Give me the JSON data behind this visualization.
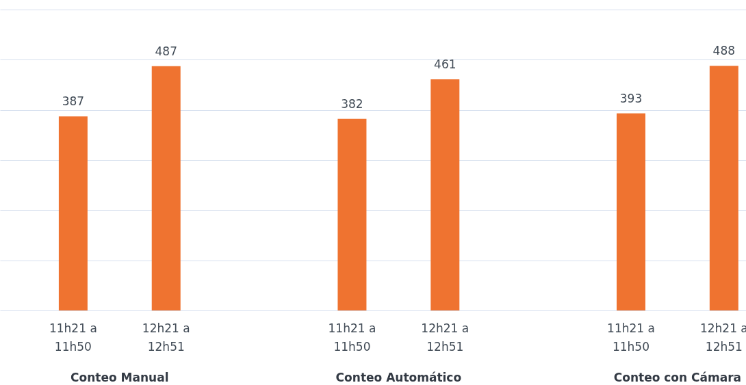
{
  "chart_data": {
    "type": "bar",
    "categories": [
      "11h21 a 11h50",
      "12h21 a 12h51",
      "11h21 a 11h50",
      "12h21 a 12h51",
      "11h21 a 11h50",
      "12h21 a 12h51"
    ],
    "values": [
      387,
      487,
      382,
      461,
      393,
      488
    ],
    "color": "#ef7330",
    "data_labels": true,
    "annotations": [
      "Conteo Manual",
      "Conteo Automático",
      "Conteo con Cámara"
    ],
    "ylim": [
      0,
      600
    ],
    "yticks": [
      {
        "value": 0,
        "label": null
      },
      {
        "value": 100,
        "label": null
      },
      {
        "value": 200,
        "label": null
      },
      {
        "value": 300,
        "label": null
      },
      {
        "value": 400,
        "label": null
      },
      {
        "value": 500,
        "label": null
      },
      {
        "value": 600,
        "label": null
      }
    ],
    "tick_labels": "x",
    "grid": "y"
  }
}
